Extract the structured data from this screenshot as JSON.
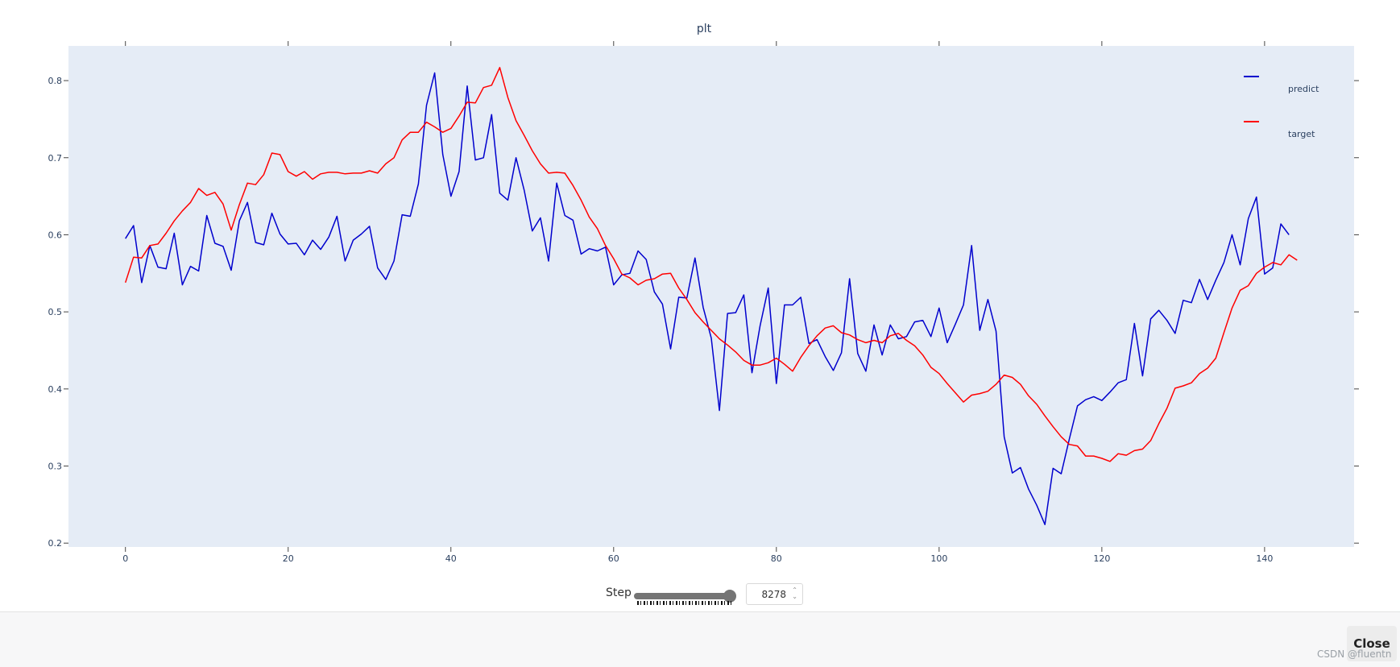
{
  "chart_data": {
    "type": "line",
    "title": "plt",
    "xlabel": "",
    "ylabel": "",
    "xlim": [
      -7,
      151
    ],
    "ylim": [
      0.195,
      0.845
    ],
    "x_ticks": [
      0,
      20,
      40,
      60,
      80,
      100,
      120,
      140
    ],
    "y_ticks": [
      0.2,
      0.3,
      0.4,
      0.5,
      0.6,
      0.7,
      0.8
    ],
    "grid": false,
    "legend_position": "top-right",
    "series": [
      {
        "name": "predict",
        "color": "#0000cd",
        "values": [
          0.595,
          0.612,
          0.538,
          0.586,
          0.558,
          0.556,
          0.602,
          0.535,
          0.559,
          0.553,
          0.625,
          0.589,
          0.585,
          0.554,
          0.618,
          0.642,
          0.59,
          0.587,
          0.628,
          0.601,
          0.588,
          0.589,
          0.574,
          0.593,
          0.581,
          0.597,
          0.624,
          0.566,
          0.593,
          0.601,
          0.611,
          0.557,
          0.542,
          0.566,
          0.626,
          0.624,
          0.666,
          0.768,
          0.81,
          0.704,
          0.65,
          0.682,
          0.793,
          0.697,
          0.7,
          0.756,
          0.654,
          0.645,
          0.7,
          0.658,
          0.605,
          0.622,
          0.566,
          0.667,
          0.625,
          0.619,
          0.575,
          0.582,
          0.579,
          0.584,
          0.535,
          0.548,
          0.55,
          0.579,
          0.568,
          0.526,
          0.51,
          0.452,
          0.519,
          0.518,
          0.57,
          0.506,
          0.466,
          0.372,
          0.498,
          0.499,
          0.522,
          0.421,
          0.482,
          0.531,
          0.407,
          0.509,
          0.509,
          0.519,
          0.459,
          0.464,
          0.442,
          0.424,
          0.447,
          0.543,
          0.446,
          0.423,
          0.483,
          0.444,
          0.483,
          0.465,
          0.468,
          0.487,
          0.489,
          0.468,
          0.505,
          0.46,
          0.484,
          0.509,
          0.586,
          0.476,
          0.516,
          0.475,
          0.338,
          0.291,
          0.298,
          0.27,
          0.249,
          0.224,
          0.297,
          0.29,
          0.335,
          0.378,
          0.386,
          0.39,
          0.385,
          0.396,
          0.408,
          0.412,
          0.485,
          0.417,
          0.491,
          0.502,
          0.489,
          0.472,
          0.515,
          0.512,
          0.542,
          0.516,
          0.541,
          0.564,
          0.6,
          0.561,
          0.621,
          0.649,
          0.549,
          0.557,
          0.614,
          0.6
        ]
      },
      {
        "name": "target",
        "color": "#ff0000",
        "values": [
          0.538,
          0.571,
          0.57,
          0.586,
          0.588,
          0.602,
          0.618,
          0.631,
          0.642,
          0.66,
          0.651,
          0.655,
          0.64,
          0.606,
          0.639,
          0.667,
          0.665,
          0.678,
          0.706,
          0.704,
          0.682,
          0.676,
          0.682,
          0.672,
          0.679,
          0.681,
          0.681,
          0.679,
          0.68,
          0.68,
          0.683,
          0.68,
          0.692,
          0.7,
          0.723,
          0.733,
          0.733,
          0.746,
          0.74,
          0.733,
          0.738,
          0.754,
          0.772,
          0.771,
          0.791,
          0.794,
          0.817,
          0.778,
          0.748,
          0.729,
          0.709,
          0.692,
          0.68,
          0.681,
          0.68,
          0.664,
          0.645,
          0.623,
          0.608,
          0.586,
          0.569,
          0.549,
          0.544,
          0.535,
          0.541,
          0.543,
          0.549,
          0.55,
          0.531,
          0.516,
          0.499,
          0.487,
          0.476,
          0.465,
          0.457,
          0.448,
          0.437,
          0.431,
          0.431,
          0.434,
          0.44,
          0.432,
          0.423,
          0.441,
          0.456,
          0.469,
          0.479,
          0.482,
          0.473,
          0.47,
          0.464,
          0.46,
          0.463,
          0.46,
          0.469,
          0.472,
          0.463,
          0.456,
          0.444,
          0.428,
          0.42,
          0.407,
          0.395,
          0.383,
          0.392,
          0.394,
          0.397,
          0.406,
          0.418,
          0.415,
          0.406,
          0.391,
          0.38,
          0.365,
          0.351,
          0.338,
          0.328,
          0.326,
          0.313,
          0.313,
          0.31,
          0.306,
          0.316,
          0.314,
          0.32,
          0.322,
          0.333,
          0.355,
          0.375,
          0.401,
          0.404,
          0.408,
          0.42,
          0.427,
          0.44,
          0.473,
          0.505,
          0.528,
          0.534,
          0.55,
          0.558,
          0.564,
          0.561,
          0.574,
          0.567
        ]
      }
    ]
  },
  "controls": {
    "step_label": "Step",
    "step_value": "8278",
    "spinner_glyph": "⌃⌄"
  },
  "footer": {
    "close_label": "Close",
    "watermark": "CSDN @fluentn"
  }
}
